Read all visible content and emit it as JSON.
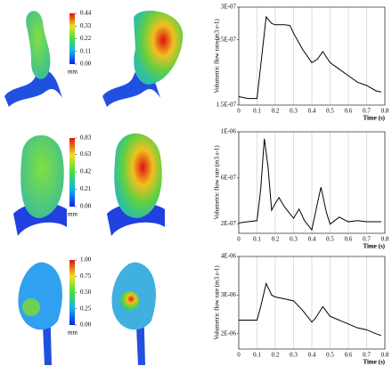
{
  "chart_data": [
    {
      "type": "line",
      "ylabel": "Volumetric flow rate (m3.s-1)",
      "xlabel": "Time (s)",
      "x": [
        0,
        0.05,
        0.1,
        0.12,
        0.15,
        0.18,
        0.2,
        0.25,
        0.28,
        0.3,
        0.35,
        0.4,
        0.43,
        0.46,
        0.5,
        0.55,
        0.6,
        0.65,
        0.7,
        0.75,
        0.78
      ],
      "series": [
        {
          "color": "#000000",
          "values": [
            1.63e-07,
            1.6e-07,
            1.6e-07,
            2.1e-07,
            2.85e-07,
            2.75e-07,
            2.73e-07,
            2.73e-07,
            2.72e-07,
            2.6e-07,
            2.35e-07,
            2.15e-07,
            2.2e-07,
            2.32e-07,
            2.15e-07,
            2.05e-07,
            1.95e-07,
            1.85e-07,
            1.8e-07,
            1.72e-07,
            1.7e-07
          ]
        }
      ],
      "xlim": [
        0,
        0.8
      ],
      "xticks": [
        0,
        0.1,
        0.2,
        0.3,
        0.4,
        0.5,
        0.6,
        0.7,
        0.8
      ],
      "ylim": [
        1.5e-07,
        3e-07
      ],
      "yticks": [
        {
          "value": 1.5e-07,
          "label": "1.5E-07"
        },
        {
          "value": 2.5e-07,
          "label": "2.5E-07"
        },
        {
          "value": 3e-07,
          "label": "3E-07"
        }
      ],
      "grid": true
    },
    {
      "type": "line",
      "ylabel": "Volumetric flow rate (m3.s-1)",
      "xlabel": "Time (s)",
      "x": [
        0,
        0.05,
        0.1,
        0.12,
        0.14,
        0.16,
        0.18,
        0.2,
        0.22,
        0.25,
        0.3,
        0.33,
        0.36,
        0.4,
        0.42,
        0.45,
        0.48,
        0.5,
        0.55,
        0.6,
        0.65,
        0.7,
        0.75,
        0.78
      ],
      "series": [
        {
          "color": "#000000",
          "values": [
            2.1e-07,
            2.2e-07,
            2.3e-07,
            5e-07,
            9.4e-07,
            7e-07,
            3.2e-07,
            3.8e-07,
            4.3e-07,
            3.5e-07,
            2.5e-07,
            3.3e-07,
            2.3e-07,
            1.5e-07,
            3e-07,
            5.2e-07,
            3e-07,
            2e-07,
            2.6e-07,
            2.2e-07,
            2.3e-07,
            2.2e-07,
            2.2e-07,
            2.2e-07
          ]
        }
      ],
      "xlim": [
        0,
        0.8
      ],
      "xticks": [
        0,
        0.1,
        0.2,
        0.3,
        0.4,
        0.5,
        0.6,
        0.7,
        0.8
      ],
      "ylim": [
        1.2e-07,
        1e-06
      ],
      "yticks": [
        {
          "value": 2e-07,
          "label": "2E-07"
        },
        {
          "value": 6e-07,
          "label": "6E-07"
        },
        {
          "value": 1e-06,
          "label": "1E-06"
        }
      ],
      "grid": true
    },
    {
      "type": "line",
      "ylabel": "Volumetric flow rate (m3.s-1)",
      "xlabel": "Time (s)",
      "x": [
        0,
        0.05,
        0.1,
        0.12,
        0.15,
        0.18,
        0.2,
        0.25,
        0.3,
        0.35,
        0.4,
        0.42,
        0.46,
        0.5,
        0.55,
        0.6,
        0.65,
        0.7,
        0.75,
        0.78
      ],
      "series": [
        {
          "color": "#000000",
          "values": [
            2.35e-06,
            2.35e-06,
            2.35e-06,
            2.7e-06,
            3.3e-06,
            3e-06,
            2.95e-06,
            2.9e-06,
            2.85e-06,
            2.6e-06,
            2.3e-06,
            2.4e-06,
            2.7e-06,
            2.45e-06,
            2.35e-06,
            2.25e-06,
            2.15e-06,
            2.1e-06,
            2e-06,
            1.95e-06
          ]
        }
      ],
      "xlim": [
        0,
        0.8
      ],
      "xticks": [
        0,
        0.1,
        0.2,
        0.3,
        0.4,
        0.5,
        0.6,
        0.7,
        0.8
      ],
      "ylim": [
        1.6e-06,
        4e-06
      ],
      "yticks": [
        {
          "value": 2e-06,
          "label": "2E-06"
        },
        {
          "value": 3e-06,
          "label": "3E-06"
        },
        {
          "value": 4e-06,
          "label": "4E-06"
        }
      ],
      "grid": true
    }
  ],
  "colorbars": [
    {
      "unit": "mm",
      "lim": [
        0,
        0.44
      ],
      "ticks": [
        {
          "value": 0,
          "label": "0.00"
        },
        {
          "value": 0.11,
          "label": "0.11"
        },
        {
          "value": 0.22,
          "label": "0.22"
        },
        {
          "value": 0.33,
          "label": "0.33"
        },
        {
          "value": 0.44,
          "label": "0.44"
        }
      ]
    },
    {
      "unit": "mm",
      "lim": [
        0,
        0.83
      ],
      "ticks": [
        {
          "value": 0,
          "label": "0.00"
        },
        {
          "value": 0.21,
          "label": "0.21"
        },
        {
          "value": 0.42,
          "label": "0.42"
        },
        {
          "value": 0.63,
          "label": "0.63"
        },
        {
          "value": 0.83,
          "label": "0.83"
        }
      ]
    },
    {
      "unit": "mm",
      "lim": [
        0,
        1
      ],
      "ticks": [
        {
          "value": 0,
          "label": "0.00"
        },
        {
          "value": 0.25,
          "label": "0.25"
        },
        {
          "value": 0.5,
          "label": "0.50"
        },
        {
          "value": 0.75,
          "label": "0.75"
        },
        {
          "value": 1,
          "label": "1.00"
        }
      ]
    }
  ]
}
